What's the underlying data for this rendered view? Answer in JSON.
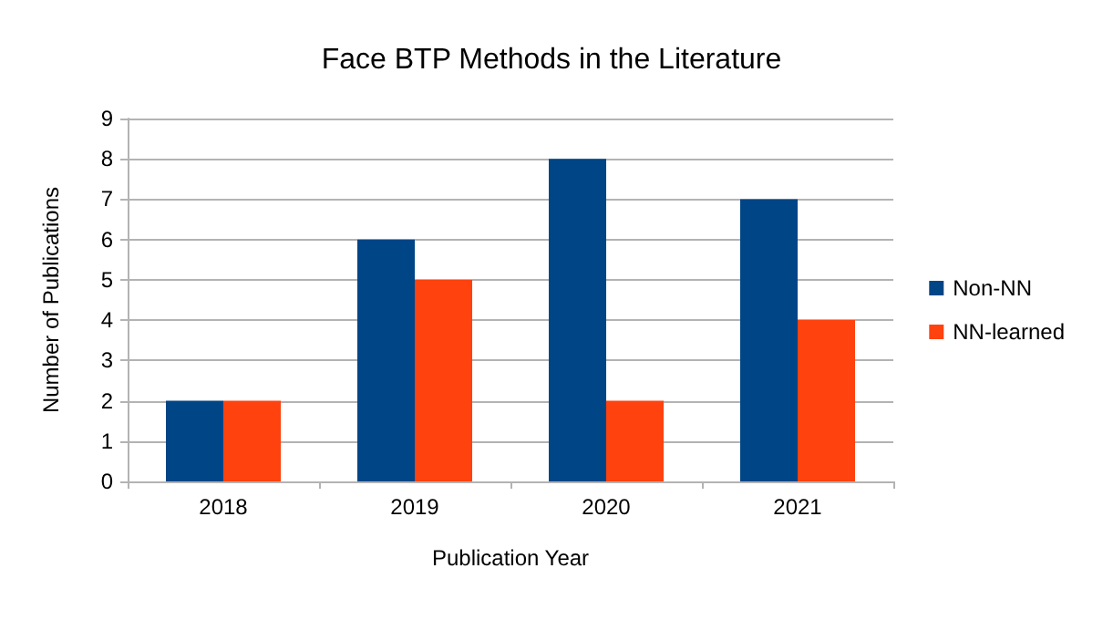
{
  "chart_data": {
    "type": "bar",
    "title": "Face BTP Methods in the Literature",
    "xlabel": "Publication Year",
    "ylabel": "Number of Publications",
    "categories": [
      "2018",
      "2019",
      "2020",
      "2021"
    ],
    "series": [
      {
        "name": "Non-NN",
        "color": "#004586",
        "values": [
          2,
          6,
          8,
          7
        ]
      },
      {
        "name": "NN-learned",
        "color": "#ff420e",
        "values": [
          2,
          5,
          2,
          4
        ]
      }
    ],
    "ylim": [
      0,
      9
    ],
    "yticks": [
      0,
      1,
      2,
      3,
      4,
      5,
      6,
      7,
      8,
      9
    ],
    "grid": "y",
    "legend": "right"
  }
}
